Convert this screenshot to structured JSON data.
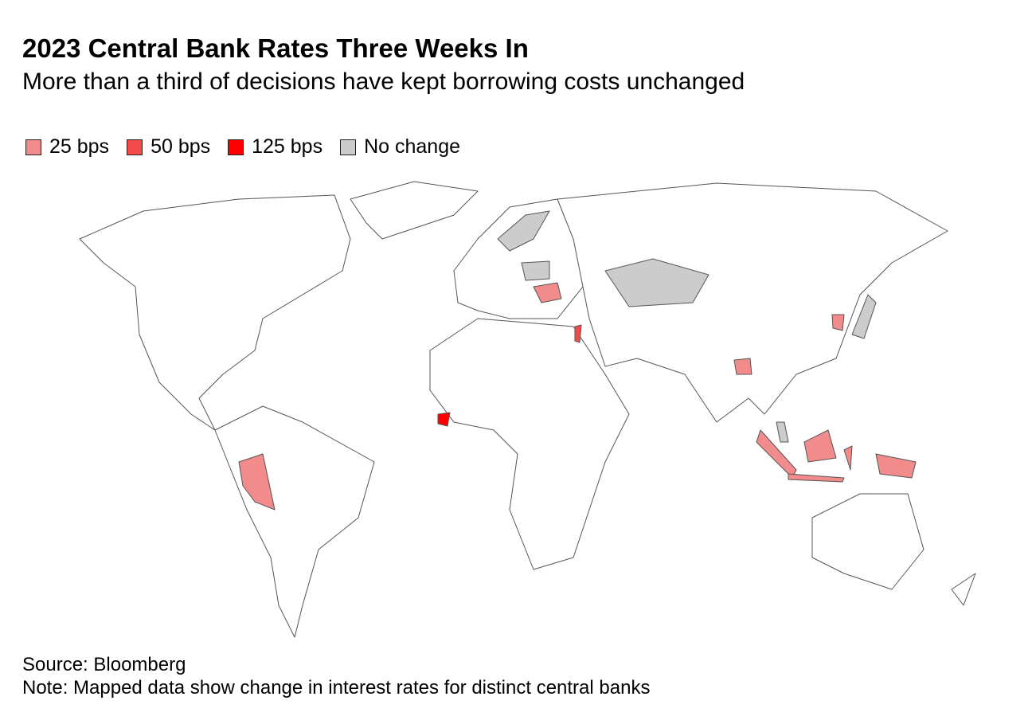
{
  "title": "2023 Central Bank Rates Three Weeks In",
  "subtitle": "More than a third of decisions have kept borrowing costs unchanged",
  "legend": [
    {
      "label": "25 bps",
      "color": "#f28b8b"
    },
    {
      "label": "50 bps",
      "color": "#f44a4a"
    },
    {
      "label": "125 bps",
      "color": "#ff0000"
    },
    {
      "label": "No change",
      "color": "#cccccc"
    }
  ],
  "source": "Source: Bloomberg",
  "note": "Note: Mapped data show change in interest rates for distinct central banks"
}
